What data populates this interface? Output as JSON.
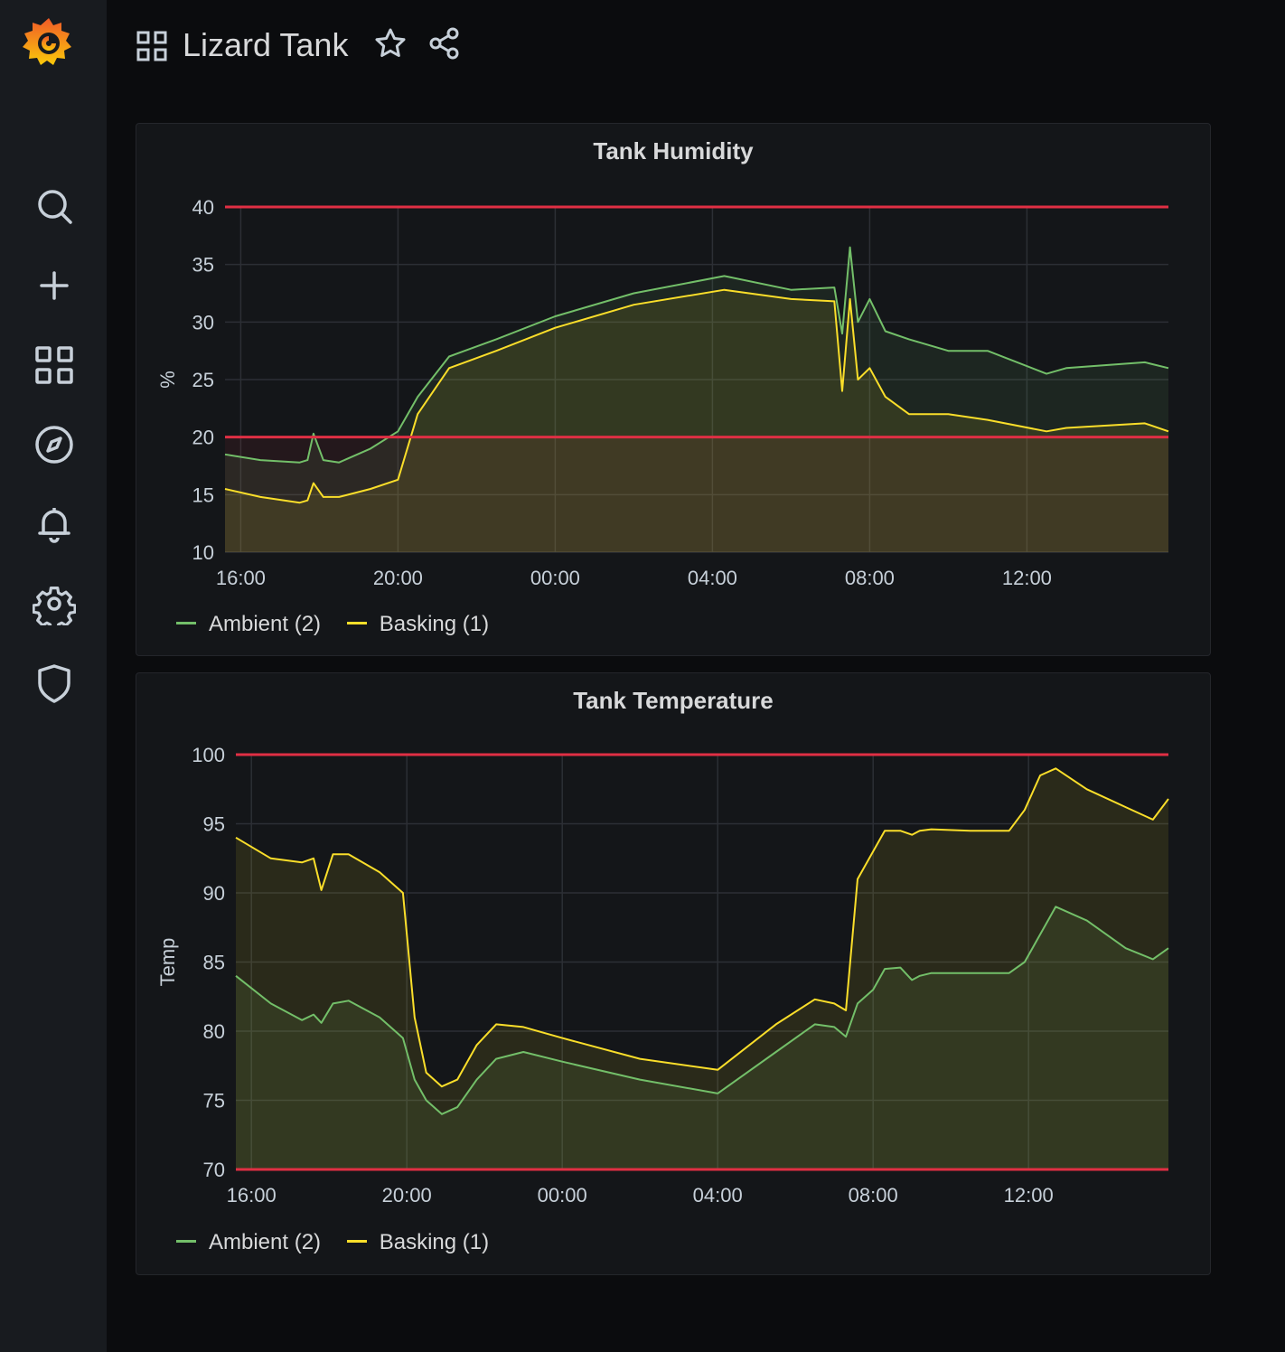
{
  "dashboard": {
    "title": "Lizard Tank"
  },
  "sidebar": {
    "items": [
      {
        "icon": "search-icon"
      },
      {
        "icon": "plus-icon"
      },
      {
        "icon": "dashboards-icon"
      },
      {
        "icon": "explore-compass-icon"
      },
      {
        "icon": "alerting-bell-icon"
      },
      {
        "icon": "configuration-gear-icon"
      },
      {
        "icon": "server-admin-shield-icon"
      }
    ]
  },
  "colors": {
    "ambient": "#73bf69",
    "basking": "#fade2a",
    "threshold": "#e02f44",
    "grid": "#2c2f35",
    "panel_bg": "#141619"
  },
  "panels": [
    {
      "title": "Tank Humidity",
      "legend": [
        "Ambient (2)",
        "Basking (1)"
      ],
      "chart_data": {
        "type": "area",
        "title": "Tank Humidity",
        "ylabel": "%",
        "x_ticks": [
          "16:00",
          "20:00",
          "00:00",
          "04:00",
          "08:00",
          "12:00"
        ],
        "ylim": [
          10,
          40
        ],
        "y_ticks": [
          10,
          15,
          20,
          25,
          30,
          35,
          40
        ],
        "thresholds": [
          20,
          40
        ],
        "x_hours": [
          15.6,
          16.5,
          17.5,
          17.7,
          17.85,
          18.1,
          18.5,
          19.3,
          20,
          20.5,
          21.3,
          22.5,
          24,
          26,
          28.3,
          30,
          31.1,
          31.3,
          31.5,
          31.7,
          32,
          32.4,
          33,
          34,
          35,
          36.5,
          37,
          39,
          39.6
        ],
        "series": [
          {
            "name": "Ambient (2)",
            "values": [
              18.5,
              18.0,
              17.8,
              18.0,
              20.3,
              18.0,
              17.8,
              19.0,
              20.5,
              23.5,
              27.0,
              28.5,
              30.5,
              32.5,
              34.0,
              32.8,
              33.0,
              29.0,
              36.5,
              30.0,
              32.0,
              29.2,
              28.5,
              27.5,
              27.5,
              25.5,
              26.0,
              26.5,
              26.0
            ]
          },
          {
            "name": "Basking (1)",
            "values": [
              15.5,
              14.8,
              14.3,
              14.5,
              16.0,
              14.8,
              14.8,
              15.5,
              16.3,
              22.0,
              26.0,
              27.5,
              29.5,
              31.5,
              32.8,
              32.0,
              31.8,
              24.0,
              32.0,
              25.0,
              26.0,
              23.5,
              22.0,
              22.0,
              21.5,
              20.5,
              20.8,
              21.2,
              20.5
            ]
          }
        ]
      }
    },
    {
      "title": "Tank Temperature",
      "legend": [
        "Ambient (2)",
        "Basking (1)"
      ],
      "chart_data": {
        "type": "area",
        "title": "Tank Temperature",
        "ylabel": "Temp",
        "x_ticks": [
          "16:00",
          "20:00",
          "00:00",
          "04:00",
          "08:00",
          "12:00"
        ],
        "ylim": [
          70,
          100
        ],
        "y_ticks": [
          70,
          75,
          80,
          85,
          90,
          95,
          100
        ],
        "thresholds": [
          70,
          100
        ],
        "x_hours": [
          15.6,
          16.5,
          17.3,
          17.6,
          17.8,
          18.1,
          18.5,
          19.3,
          19.9,
          20.2,
          20.5,
          20.9,
          21.3,
          21.8,
          22.3,
          23.0,
          24.0,
          26.0,
          28.0,
          29.5,
          30.5,
          31.0,
          31.3,
          31.6,
          32.0,
          32.3,
          32.7,
          33.0,
          33.2,
          33.5,
          34.5,
          35.0,
          35.5,
          35.9,
          36.3,
          36.7,
          37.5,
          38.5,
          39.2,
          39.6
        ],
        "series": [
          {
            "name": "Ambient (2)",
            "values": [
              84.0,
              82.0,
              80.8,
              81.2,
              80.6,
              82.0,
              82.2,
              81.0,
              79.5,
              76.5,
              75.0,
              74.0,
              74.5,
              76.5,
              78.0,
              78.5,
              77.8,
              76.5,
              75.5,
              78.5,
              80.5,
              80.3,
              79.6,
              82.0,
              83.0,
              84.5,
              84.6,
              83.7,
              84.0,
              84.2,
              84.2,
              84.2,
              84.2,
              85.0,
              87.0,
              89.0,
              88.0,
              86.0,
              85.2,
              86.0
            ]
          },
          {
            "name": "Basking (1)",
            "values": [
              94.0,
              92.5,
              92.2,
              92.5,
              90.2,
              92.8,
              92.8,
              91.5,
              90.0,
              81.0,
              77.0,
              76.0,
              76.5,
              79.0,
              80.5,
              80.3,
              79.5,
              78.0,
              77.2,
              80.5,
              82.3,
              82.0,
              81.5,
              91.0,
              93.0,
              94.5,
              94.5,
              94.2,
              94.5,
              94.6,
              94.5,
              94.5,
              94.5,
              96.0,
              98.5,
              99.0,
              97.5,
              96.2,
              95.3,
              96.8
            ]
          }
        ]
      }
    }
  ]
}
